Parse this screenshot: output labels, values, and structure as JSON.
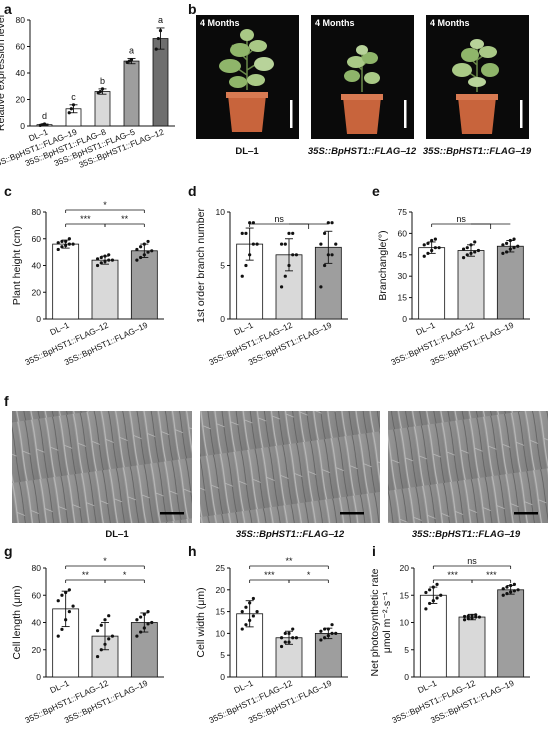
{
  "panel_labels": {
    "a": "a",
    "b": "b",
    "c": "c",
    "d": "d",
    "e": "e",
    "f": "f",
    "g": "g",
    "h": "h",
    "i": "i"
  },
  "photos_b": {
    "captions": [
      "DL‒1",
      "35S::BpHST1::FLAG‒12",
      "35S::BpHST1::FLAG‒19"
    ],
    "time_label": "4 Months"
  },
  "photos_f": {
    "captions": [
      "DL‒1",
      "35S::BpHST1::FLAG‒12",
      "35S::BpHST1::FLAG‒19"
    ]
  },
  "colors": {
    "white_bar": "#ffffff",
    "light_gray_bar": "#d9d9d9",
    "mid_gray_bar": "#9e9e9e",
    "dark_gray_bar": "#6e6e6e",
    "photo_background": "#0a0a0a",
    "sem_background": "#8a8a8a",
    "pot": "#c8643c",
    "leaf": "#8fb56a"
  },
  "chart_data": [
    {
      "id": "a",
      "type": "bar",
      "ylabel": "Relative expression level",
      "categories": [
        "DL‒1",
        "35S::BpHST1::FLAG‒19",
        "35S::BpHST1::FLAG‒8",
        "35S::BpHST1::FLAG‒5",
        "35S::BpHST1::FLAG‒12"
      ],
      "values": [
        1,
        13,
        26,
        49,
        66
      ],
      "errors": [
        0.5,
        3,
        2,
        2,
        8
      ],
      "letters": [
        "d",
        "c",
        "b",
        "a",
        "a"
      ],
      "ylim": [
        0,
        80
      ],
      "yticks": [
        0,
        20,
        40,
        60,
        80
      ],
      "bar_colors": [
        "#ffffff",
        "#ffffff",
        "#d9d9d9",
        "#9e9e9e",
        "#6e6e6e"
      ],
      "points": [
        [
          0.5,
          1,
          1.5
        ],
        [
          10,
          13,
          16
        ],
        [
          25,
          26,
          28
        ],
        [
          48,
          49,
          50
        ],
        [
          58,
          66,
          72
        ]
      ]
    },
    {
      "id": "c",
      "type": "bar",
      "ylabel": "Plant height (cm)",
      "categories": [
        "DL‒1",
        "35S::BpHST1::FLAG‒12",
        "35S::BpHST1::FLAG‒19"
      ],
      "values": [
        56,
        44,
        51
      ],
      "errors": [
        3,
        3,
        5
      ],
      "ylim": [
        0,
        80
      ],
      "yticks": [
        0,
        20,
        40,
        60,
        80
      ],
      "bar_colors": [
        "#ffffff",
        "#d9d9d9",
        "#9e9e9e"
      ],
      "points": [
        [
          52,
          54,
          55,
          56,
          56,
          57,
          58,
          58,
          60
        ],
        [
          40,
          42,
          43,
          44,
          44,
          45,
          46,
          47,
          48
        ],
        [
          44,
          46,
          48,
          50,
          51,
          52,
          54,
          56,
          58
        ]
      ],
      "significance": [
        {
          "from": 0,
          "to": 2,
          "label": "*",
          "level": 2
        },
        {
          "from": 0,
          "to": 1,
          "label": "***",
          "level": 1
        },
        {
          "from": 1,
          "to": 2,
          "label": "**",
          "level": 1
        }
      ]
    },
    {
      "id": "d",
      "type": "bar",
      "ylabel": "1st order branch number",
      "categories": [
        "DL‒1",
        "35S::BpHST1::FLAG‒12",
        "35S::BpHST1::FLAG‒19"
      ],
      "values": [
        7,
        6,
        6.7
      ],
      "errors": [
        1.5,
        1.5,
        1.5
      ],
      "ylim": [
        0,
        10
      ],
      "yticks": [
        0,
        5,
        10
      ],
      "bar_colors": [
        "#ffffff",
        "#d9d9d9",
        "#9e9e9e"
      ],
      "points": [
        [
          4,
          5,
          6,
          7,
          7,
          8,
          8,
          9,
          9
        ],
        [
          3,
          4,
          5,
          6,
          6,
          7,
          7,
          8,
          8
        ],
        [
          3,
          5,
          6,
          6,
          7,
          7,
          8,
          9,
          9
        ]
      ],
      "significance": [
        {
          "from": 0,
          "to": 1.5,
          "label": "ns",
          "level": 1
        }
      ]
    },
    {
      "id": "e",
      "type": "bar",
      "ylabel": "Branchangle(°)",
      "categories": [
        "DL‒1",
        "35S::BpHST1::FLAG‒12",
        "35S::BpHST1::FLAG‒19"
      ],
      "values": [
        50,
        48,
        51
      ],
      "errors": [
        4,
        4,
        4
      ],
      "ylim": [
        0,
        75
      ],
      "yticks": [
        0,
        15,
        30,
        45,
        60,
        75
      ],
      "bar_colors": [
        "#ffffff",
        "#d9d9d9",
        "#9e9e9e"
      ],
      "points": [
        [
          44,
          46,
          48,
          50,
          50,
          52,
          53,
          55,
          56
        ],
        [
          43,
          45,
          46,
          47,
          48,
          49,
          50,
          52,
          54
        ],
        [
          46,
          47,
          49,
          50,
          51,
          52,
          53,
          55,
          56
        ]
      ],
      "significance": [
        {
          "from": 0,
          "to": 1.5,
          "label": "ns",
          "level": 1
        }
      ]
    },
    {
      "id": "g",
      "type": "bar",
      "ylabel": "Cell length (μm)",
      "categories": [
        "DL‒1",
        "35S::BpHST1::FLAG‒12",
        "35S::BpHST1::FLAG‒19"
      ],
      "values": [
        50,
        30,
        40
      ],
      "errors": [
        13,
        10,
        7
      ],
      "ylim": [
        0,
        80
      ],
      "yticks": [
        0,
        20,
        40,
        60,
        80
      ],
      "bar_colors": [
        "#ffffff",
        "#d9d9d9",
        "#9e9e9e"
      ],
      "points": [
        [
          30,
          35,
          42,
          48,
          52,
          56,
          60,
          62,
          64
        ],
        [
          15,
          20,
          24,
          28,
          30,
          34,
          38,
          42,
          45
        ],
        [
          30,
          33,
          36,
          39,
          40,
          42,
          44,
          46,
          48
        ]
      ],
      "significance": [
        {
          "from": 0,
          "to": 2,
          "label": "*",
          "level": 2
        },
        {
          "from": 0,
          "to": 1,
          "label": "**",
          "level": 1
        },
        {
          "from": 1,
          "to": 2,
          "label": "*",
          "level": 1
        }
      ]
    },
    {
      "id": "h",
      "type": "bar",
      "ylabel": "Cell width (μm)",
      "categories": [
        "DL‒1",
        "35S::BpHST1::FLAG‒12",
        "35S::BpHST1::FLAG‒19"
      ],
      "values": [
        14.5,
        9,
        10
      ],
      "errors": [
        3,
        1.5,
        1.2
      ],
      "ylim": [
        0,
        25
      ],
      "yticks": [
        0,
        5,
        10,
        15,
        20,
        25
      ],
      "bar_colors": [
        "#ffffff",
        "#d9d9d9",
        "#9e9e9e"
      ],
      "points": [
        [
          11,
          12,
          13,
          14,
          15,
          15,
          16,
          17,
          18
        ],
        [
          7,
          8,
          8,
          9,
          9,
          9,
          10,
          10,
          11
        ],
        [
          8.5,
          9,
          9.5,
          10,
          10,
          10.5,
          11,
          11,
          12
        ]
      ],
      "significance": [
        {
          "from": 0,
          "to": 2,
          "label": "**",
          "level": 2
        },
        {
          "from": 0,
          "to": 1,
          "label": "***",
          "level": 1
        },
        {
          "from": 1,
          "to": 2,
          "label": "*",
          "level": 1
        }
      ]
    },
    {
      "id": "i",
      "type": "bar",
      "ylabel": "Net photosynthetic rate",
      "ylabel2": "μmol m⁻²·s⁻¹",
      "categories": [
        "DL‒1",
        "35S::BpHST1::FLAG‒12",
        "35S::BpHST1::FLAG‒19"
      ],
      "values": [
        15,
        11,
        16
      ],
      "errors": [
        1.5,
        0.5,
        0.8
      ],
      "ylim": [
        0,
        20
      ],
      "yticks": [
        0,
        5,
        10,
        15,
        20
      ],
      "bar_colors": [
        "#ffffff",
        "#d9d9d9",
        "#9e9e9e"
      ],
      "points": [
        [
          12.5,
          13.5,
          14,
          14.5,
          15,
          15.5,
          16,
          16.5,
          17
        ],
        [
          10.5,
          10.7,
          10.8,
          11,
          11,
          11.1,
          11.2,
          11.3,
          11.4
        ],
        [
          15,
          15.3,
          15.6,
          15.8,
          16,
          16.2,
          16.5,
          16.8,
          17
        ]
      ],
      "significance": [
        {
          "from": 0,
          "to": 2,
          "label": "ns",
          "level": 2
        },
        {
          "from": 0,
          "to": 1,
          "label": "***",
          "level": 1
        },
        {
          "from": 1,
          "to": 2,
          "label": "***",
          "level": 1
        }
      ]
    }
  ]
}
